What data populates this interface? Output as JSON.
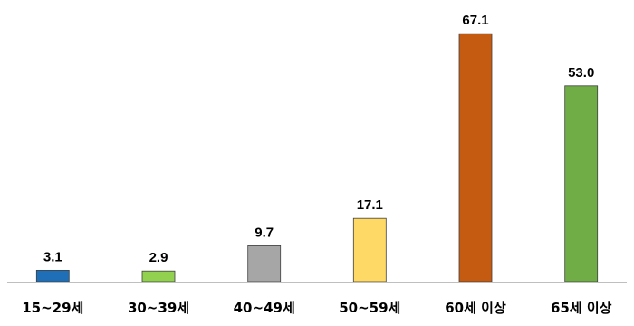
{
  "chart_data": {
    "type": "bar",
    "categories": [
      "15~29세",
      "30~39세",
      "40~49세",
      "50~59세",
      "60세 이상",
      "65세 이상"
    ],
    "values": [
      3.1,
      2.9,
      9.7,
      17.1,
      67.1,
      53.0
    ],
    "value_labels": [
      "3.1",
      "2.9",
      "9.7",
      "17.1",
      "67.1",
      "53.0"
    ],
    "colors": [
      "#1F6FB8",
      "#92D050",
      "#A6A6A6",
      "#FFD966",
      "#C55A11",
      "#70AD47"
    ],
    "title": "",
    "xlabel": "",
    "ylabel": "",
    "ylim": [
      0,
      75
    ],
    "grid": false,
    "legend": "none"
  }
}
